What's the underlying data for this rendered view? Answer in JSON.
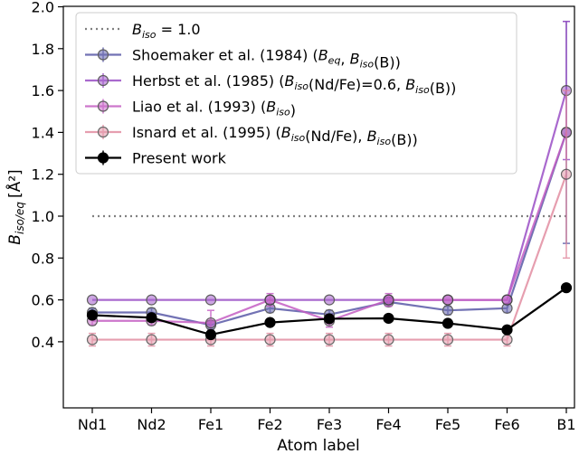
{
  "chart_data": {
    "type": "line",
    "xlabel": "Atom label",
    "ylabel_main": "B",
    "ylabel_sub": "iso/eq",
    "ylabel_unit": "[Å²]",
    "ylim": [
      0.35,
      2.0
    ],
    "yticks": [
      "0.4",
      "0.6",
      "0.8",
      "1.0",
      "1.2",
      "1.4",
      "1.6",
      "1.8",
      "2.0"
    ],
    "ytick_values": [
      0.4,
      0.6,
      0.8,
      1.0,
      1.2,
      1.4,
      1.6,
      1.8,
      2.0
    ],
    "categories": [
      "Nd1",
      "Nd2",
      "Fe1",
      "Fe2",
      "Fe3",
      "Fe4",
      "Fe5",
      "Fe6",
      "B1"
    ],
    "legend_placement": "upper-left",
    "reference_line": {
      "label_main": "B",
      "label_sub": "iso",
      "label_rest": " = 1.0",
      "value": 1.0,
      "color": "#808080"
    },
    "series": [
      {
        "name": "Shoemaker et al. (1984) (B_eq, B_iso(B))",
        "legend_parts": [
          [
            "Shoemaker et al. (1984) (",
            ""
          ],
          [
            "B",
            "eq"
          ],
          [
            ", ",
            ""
          ],
          [
            "B",
            "iso"
          ],
          [
            "(B))",
            ""
          ]
        ],
        "color": "#5a5aa8",
        "alpha": 0.85,
        "values": [
          0.54,
          0.54,
          0.48,
          0.56,
          0.53,
          0.59,
          0.55,
          0.56,
          1.4
        ],
        "errors": [
          0.02,
          0.02,
          0.02,
          0.02,
          0.02,
          0.02,
          0.02,
          0.02,
          0.53
        ]
      },
      {
        "name": "Herbst et al. (1985) (B_iso(Nd/Fe)=0.6, B_iso(B))",
        "legend_parts": [
          [
            "Herbst et al. (1985) (",
            ""
          ],
          [
            "B",
            "iso"
          ],
          [
            "(Nd/Fe)=0.6, ",
            ""
          ],
          [
            "B",
            "iso"
          ],
          [
            "(B))",
            ""
          ]
        ],
        "color": "#9b4fc6",
        "alpha": 0.85,
        "values": [
          0.6,
          0.6,
          0.6,
          0.6,
          0.6,
          0.6,
          0.6,
          0.6,
          1.6
        ],
        "errors": [
          0.0,
          0.0,
          0.0,
          0.0,
          0.0,
          0.0,
          0.0,
          0.0,
          0.33
        ]
      },
      {
        "name": "Liao et al. (1993) (B_iso)",
        "legend_parts": [
          [
            "Liao et al. (1993) (",
            ""
          ],
          [
            "B",
            "iso"
          ],
          [
            ")",
            ""
          ]
        ],
        "color": "#c55fc4",
        "alpha": 0.85,
        "values": [
          0.5,
          0.5,
          0.49,
          0.6,
          0.5,
          0.6,
          0.6,
          0.6,
          1.4
        ],
        "errors": [
          0.02,
          0.02,
          0.06,
          0.03,
          0.03,
          0.03,
          0.0,
          0.0,
          0.0
        ]
      },
      {
        "name": "Isnard et al. (1995) (B_iso(Nd/Fe), B_iso(B))",
        "legend_parts": [
          [
            "Isnard et al. (1995) (",
            ""
          ],
          [
            "B",
            "iso"
          ],
          [
            "(Nd/Fe), ",
            ""
          ],
          [
            "B",
            "iso"
          ],
          [
            "(B))",
            ""
          ]
        ],
        "color": "#e0879c",
        "alpha": 0.8,
        "values": [
          0.41,
          0.41,
          0.41,
          0.41,
          0.41,
          0.41,
          0.41,
          0.41,
          1.2
        ],
        "errors": [
          0.03,
          0.03,
          0.03,
          0.03,
          0.03,
          0.03,
          0.03,
          0.03,
          0.4
        ]
      },
      {
        "name": "Present work",
        "legend_parts": [
          [
            "Present work",
            ""
          ]
        ],
        "color": "#000000",
        "alpha": 1.0,
        "values": [
          0.527,
          0.515,
          0.434,
          0.492,
          0.51,
          0.512,
          0.488,
          0.457,
          0.658
        ],
        "errors": [
          0.006,
          0.006,
          0.006,
          0.006,
          0.006,
          0.006,
          0.006,
          0.006,
          0.008
        ]
      }
    ]
  }
}
